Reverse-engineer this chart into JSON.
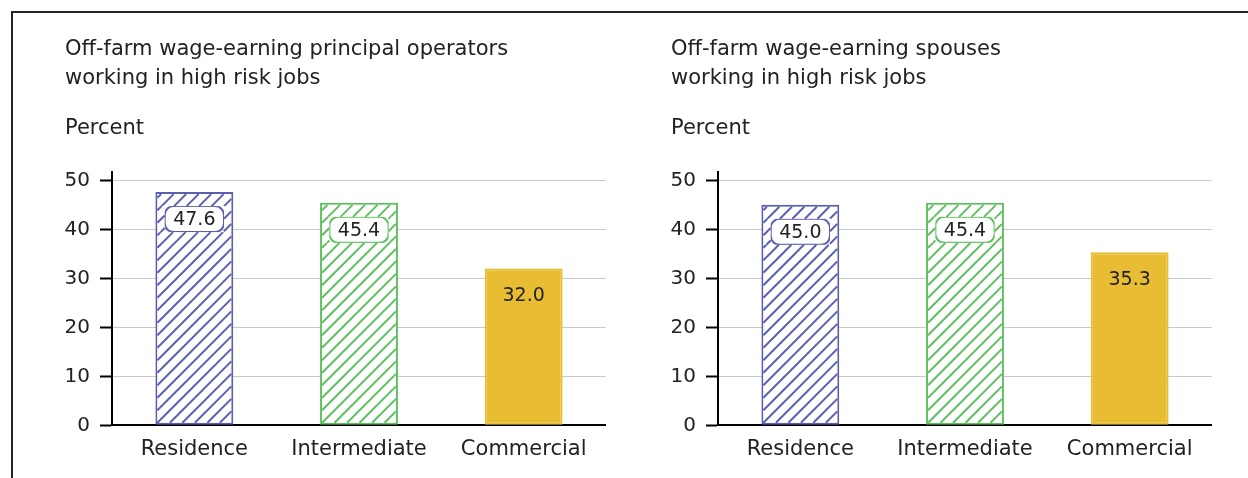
{
  "chart_data": [
    {
      "type": "bar",
      "title": "Off-farm wage-earning principal operators working in high risk jobs",
      "ylabel": "Percent",
      "categories": [
        "Residence",
        "Intermediate",
        "Commercial"
      ],
      "values": [
        47.6,
        45.4,
        32
      ],
      "value_labels": [
        "47.6",
        "45.4",
        "32.0"
      ],
      "colors": [
        "#5b5fb0",
        "#5ebf5f",
        "#e8bd34"
      ],
      "ylim": [
        0,
        51.7
      ],
      "yticks": [
        0,
        10,
        20,
        30,
        40,
        50
      ],
      "grid": "y"
    },
    {
      "type": "bar",
      "title": "Off-farm wage-earning spouses working in high risk jobs",
      "ylabel": "Percent",
      "categories": [
        "Residence",
        "Intermediate",
        "Commercial"
      ],
      "values": [
        45,
        45.4,
        35.3
      ],
      "value_labels": [
        "45.0",
        "45.4",
        "35.3"
      ],
      "colors": [
        "#5b5fb0",
        "#5ebf5f",
        "#e8bd34"
      ],
      "ylim": [
        0,
        51.7
      ],
      "yticks": [
        0,
        10,
        20,
        30,
        40,
        50
      ],
      "grid": "y"
    }
  ]
}
